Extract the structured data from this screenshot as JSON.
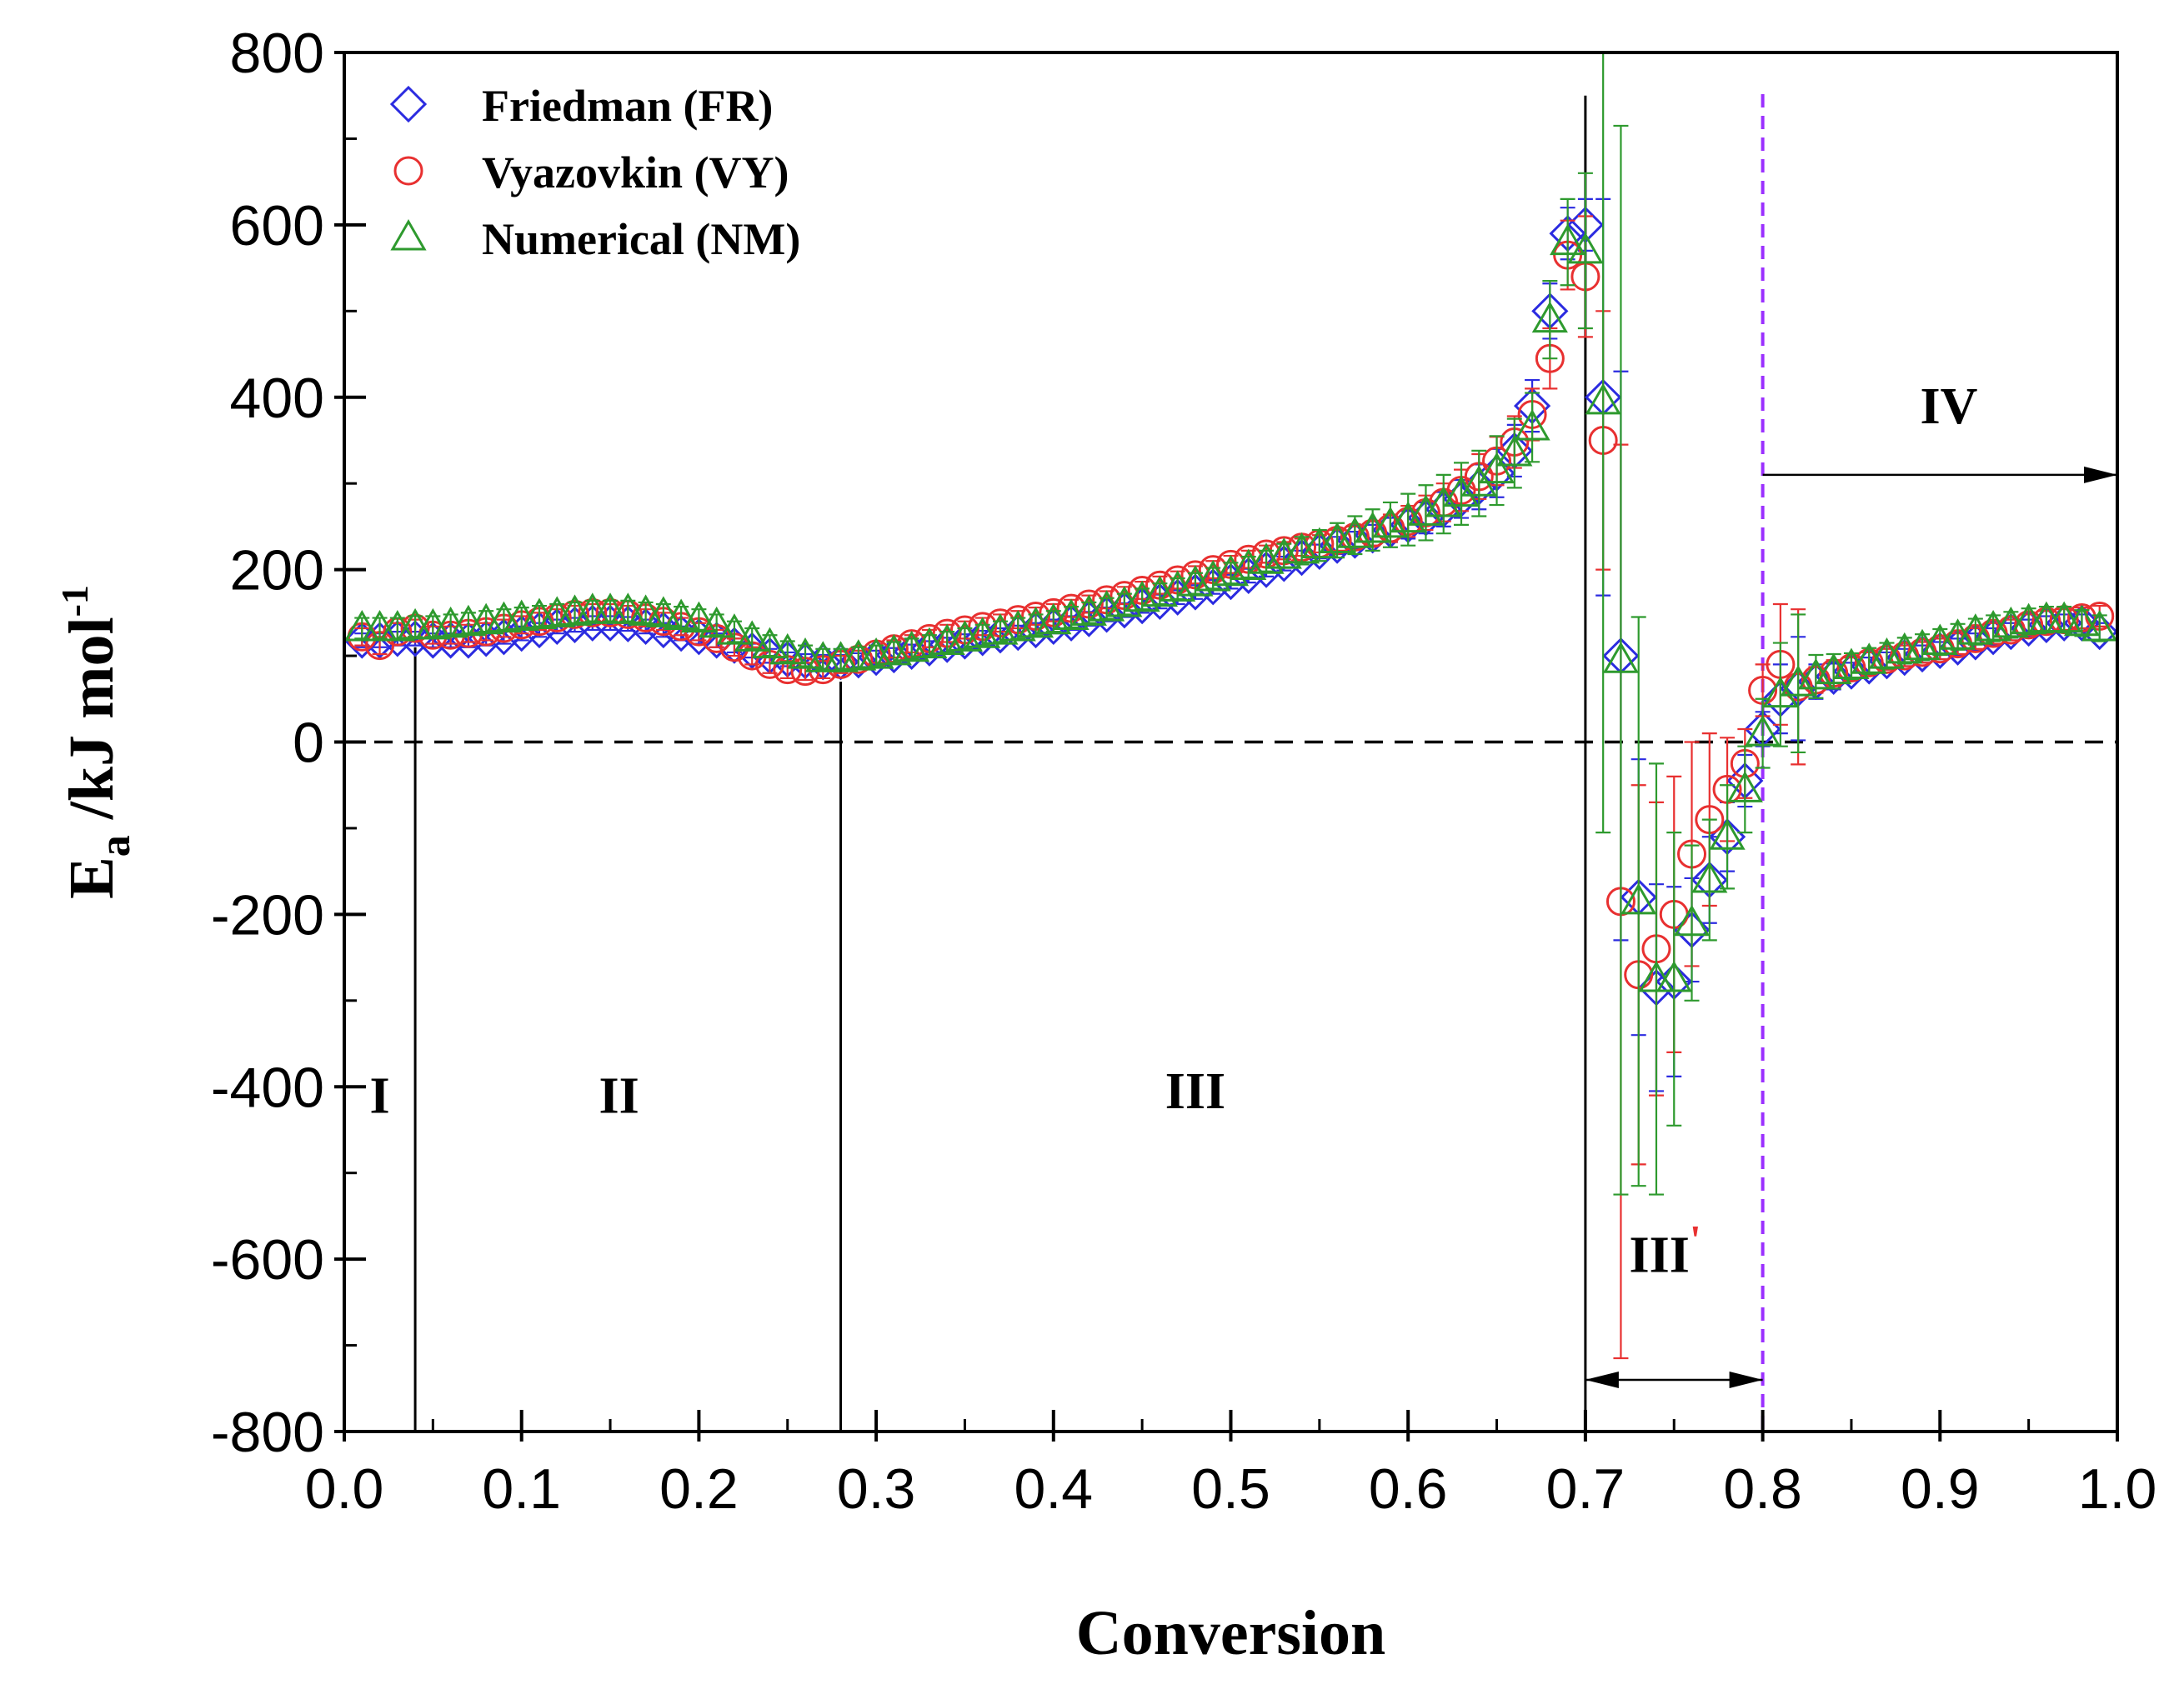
{
  "chart_data": {
    "type": "scatter",
    "xlabel": "Conversion",
    "ylabel_main": "E",
    "ylabel_sub": "a",
    "ylabel_rest": " /kJ mol",
    "ylabel_sup": "-1",
    "xlim": [
      0.0,
      1.0
    ],
    "ylim": [
      -800,
      800
    ],
    "x_ticks": [
      0.0,
      0.1,
      0.2,
      0.3,
      0.4,
      0.5,
      0.6,
      0.7,
      0.8,
      0.9,
      1.0
    ],
    "x_tick_labels": [
      "0.0",
      "0.1",
      "0.2",
      "0.3",
      "0.4",
      "0.5",
      "0.6",
      "0.7",
      "0.8",
      "0.9",
      "1.0"
    ],
    "y_ticks": [
      800,
      600,
      400,
      200,
      0,
      -200,
      -400,
      -600,
      -800
    ],
    "y_tick_labels": [
      "800",
      "600",
      "400",
      "200",
      "0",
      "-200",
      "-400",
      "-600",
      "-800"
    ],
    "legend": [
      {
        "name": "Friedman (FR)",
        "marker": "diamond",
        "color": "#2b2be0"
      },
      {
        "name": "Vyazovkin (VY)",
        "marker": "circle",
        "color": "#e83030"
      },
      {
        "name": "Numerical (NM)",
        "marker": "triangle",
        "color": "#2e9a2e"
      }
    ],
    "zero_line": 0,
    "region_boundaries": [
      0.04,
      0.28,
      0.7
    ],
    "dashed_boundary": {
      "x": 0.8,
      "color": "#9b30ff"
    },
    "regions": [
      {
        "label": "I",
        "x": 0.02,
        "y": -430
      },
      {
        "label": "II",
        "x": 0.155,
        "y": -430
      },
      {
        "label": "III",
        "x": 0.48,
        "y": -425
      },
      {
        "label": "III",
        "prime": "'",
        "x": 0.745,
        "y": -615
      },
      {
        "label": "IV",
        "x": 0.905,
        "y": 370
      }
    ],
    "arrows": [
      {
        "from_x": 0.7,
        "to_x": 0.8,
        "y": -740,
        "style": "double"
      },
      {
        "from_x": 0.8,
        "to_x": 1.0,
        "y": 310,
        "style": "single"
      }
    ],
    "series": [
      {
        "name": "Friedman (FR)",
        "color": "#2b2be0",
        "marker": "diamond",
        "x": [
          0.01,
          0.02,
          0.03,
          0.04,
          0.05,
          0.06,
          0.07,
          0.08,
          0.09,
          0.1,
          0.11,
          0.12,
          0.13,
          0.14,
          0.15,
          0.16,
          0.17,
          0.18,
          0.19,
          0.2,
          0.21,
          0.22,
          0.23,
          0.24,
          0.25,
          0.26,
          0.27,
          0.28,
          0.29,
          0.3,
          0.31,
          0.32,
          0.33,
          0.34,
          0.35,
          0.36,
          0.37,
          0.38,
          0.39,
          0.4,
          0.41,
          0.42,
          0.43,
          0.44,
          0.45,
          0.46,
          0.47,
          0.48,
          0.49,
          0.5,
          0.51,
          0.52,
          0.53,
          0.54,
          0.55,
          0.56,
          0.57,
          0.58,
          0.59,
          0.6,
          0.61,
          0.62,
          0.63,
          0.64,
          0.65,
          0.66,
          0.67,
          0.68,
          0.69,
          0.7,
          0.71,
          0.72,
          0.73,
          0.74,
          0.75,
          0.76,
          0.77,
          0.78,
          0.79,
          0.8,
          0.81,
          0.82,
          0.83,
          0.84,
          0.85,
          0.86,
          0.87,
          0.88,
          0.89,
          0.9,
          0.91,
          0.92,
          0.93,
          0.94,
          0.95,
          0.96,
          0.97,
          0.98,
          0.99
        ],
        "y": [
          118,
          118,
          120,
          120,
          118,
          118,
          118,
          120,
          122,
          126,
          130,
          134,
          136,
          138,
          138,
          137,
          134,
          130,
          126,
          122,
          118,
          112,
          106,
          100,
          96,
          94,
          93,
          93,
          95,
          98,
          101,
          105,
          109,
          113,
          117,
          121,
          124,
          127,
          130,
          134,
          138,
          143,
          148,
          153,
          158,
          163,
          168,
          174,
          180,
          186,
          193,
          200,
          207,
          214,
          221,
          228,
          234,
          240,
          246,
          252,
          260,
          270,
          282,
          296,
          312,
          338,
          390,
          500,
          590,
          600,
          400,
          100,
          -180,
          -285,
          -278,
          -218,
          -160,
          -110,
          -45,
          15,
          50,
          62,
          70,
          76,
          82,
          88,
          94,
          98,
          102,
          106,
          110,
          116,
          122,
          128,
          132,
          136,
          138,
          138,
          128
        ],
        "err": [
          8,
          8,
          8,
          8,
          8,
          8,
          8,
          8,
          8,
          8,
          8,
          8,
          8,
          8,
          8,
          8,
          8,
          8,
          8,
          8,
          8,
          8,
          8,
          8,
          8,
          8,
          8,
          8,
          8,
          8,
          8,
          8,
          8,
          8,
          8,
          8,
          8,
          8,
          8,
          8,
          8,
          8,
          8,
          8,
          8,
          8,
          8,
          8,
          8,
          8,
          8,
          8,
          8,
          8,
          8,
          10,
          10,
          12,
          14,
          16,
          18,
          20,
          22,
          26,
          28,
          30,
          30,
          32,
          30,
          30,
          230,
          330,
          160,
          120,
          110,
          60,
          50,
          40,
          30,
          20,
          40,
          60,
          20,
          15,
          10,
          10,
          10,
          10,
          10,
          10,
          10,
          10,
          10,
          10,
          10,
          10,
          10,
          10,
          10
        ]
      },
      {
        "name": "Vyazovkin (VY)",
        "color": "#e83030",
        "marker": "circle",
        "x": [
          0.01,
          0.02,
          0.03,
          0.04,
          0.05,
          0.06,
          0.07,
          0.08,
          0.09,
          0.1,
          0.11,
          0.12,
          0.13,
          0.14,
          0.15,
          0.16,
          0.17,
          0.18,
          0.19,
          0.2,
          0.21,
          0.22,
          0.23,
          0.24,
          0.25,
          0.26,
          0.27,
          0.28,
          0.29,
          0.3,
          0.31,
          0.32,
          0.33,
          0.34,
          0.35,
          0.36,
          0.37,
          0.38,
          0.39,
          0.4,
          0.41,
          0.42,
          0.43,
          0.44,
          0.45,
          0.46,
          0.47,
          0.48,
          0.49,
          0.5,
          0.51,
          0.52,
          0.53,
          0.54,
          0.55,
          0.56,
          0.57,
          0.58,
          0.59,
          0.6,
          0.61,
          0.62,
          0.63,
          0.64,
          0.65,
          0.66,
          0.67,
          0.68,
          0.69,
          0.7,
          0.71,
          0.72,
          0.73,
          0.74,
          0.75,
          0.76,
          0.77,
          0.78,
          0.79,
          0.8,
          0.81,
          0.82,
          0.83,
          0.84,
          0.85,
          0.86,
          0.87,
          0.88,
          0.89,
          0.9,
          0.91,
          0.92,
          0.93,
          0.94,
          0.95,
          0.96,
          0.97,
          0.98,
          0.99
        ],
        "y": [
          122,
          112,
          128,
          132,
          124,
          124,
          126,
          128,
          132,
          136,
          140,
          144,
          148,
          150,
          150,
          148,
          144,
          140,
          134,
          128,
          120,
          110,
          100,
          90,
          84,
          82,
          84,
          90,
          96,
          102,
          108,
          114,
          120,
          126,
          130,
          134,
          138,
          142,
          146,
          150,
          155,
          160,
          165,
          170,
          176,
          182,
          188,
          194,
          200,
          206,
          212,
          218,
          222,
          226,
          230,
          234,
          238,
          242,
          248,
          256,
          266,
          278,
          292,
          308,
          326,
          348,
          380,
          445,
          565,
          540,
          350,
          -185,
          -270,
          -240,
          -200,
          -130,
          -90,
          -55,
          -25,
          60,
          90,
          64,
          72,
          80,
          86,
          92,
          96,
          100,
          104,
          108,
          114,
          120,
          126,
          130,
          136,
          140,
          142,
          144,
          146
        ],
        "err": [
          10,
          10,
          10,
          10,
          10,
          10,
          10,
          10,
          10,
          10,
          10,
          10,
          10,
          10,
          10,
          10,
          10,
          10,
          10,
          10,
          10,
          10,
          10,
          10,
          10,
          10,
          10,
          10,
          10,
          10,
          10,
          10,
          10,
          10,
          10,
          10,
          10,
          10,
          10,
          10,
          10,
          10,
          10,
          10,
          10,
          10,
          10,
          10,
          10,
          10,
          10,
          10,
          10,
          10,
          10,
          12,
          12,
          14,
          16,
          18,
          20,
          22,
          24,
          26,
          28,
          30,
          30,
          35,
          40,
          70,
          150,
          530,
          220,
          170,
          160,
          130,
          100,
          60,
          40,
          30,
          70,
          90,
          15,
          15,
          12,
          12,
          12,
          12,
          12,
          12,
          12,
          12,
          12,
          12,
          12,
          12,
          12,
          12,
          12
        ]
      },
      {
        "name": "Numerical (NM)",
        "color": "#2e9a2e",
        "marker": "triangle",
        "x": [
          0.01,
          0.02,
          0.03,
          0.04,
          0.05,
          0.06,
          0.07,
          0.08,
          0.09,
          0.1,
          0.11,
          0.12,
          0.13,
          0.14,
          0.15,
          0.16,
          0.17,
          0.18,
          0.19,
          0.2,
          0.21,
          0.22,
          0.23,
          0.24,
          0.25,
          0.26,
          0.27,
          0.28,
          0.29,
          0.3,
          0.31,
          0.32,
          0.33,
          0.34,
          0.35,
          0.36,
          0.37,
          0.38,
          0.39,
          0.4,
          0.41,
          0.42,
          0.43,
          0.44,
          0.45,
          0.46,
          0.47,
          0.48,
          0.49,
          0.5,
          0.51,
          0.52,
          0.53,
          0.54,
          0.55,
          0.56,
          0.57,
          0.58,
          0.59,
          0.6,
          0.61,
          0.62,
          0.63,
          0.64,
          0.65,
          0.66,
          0.67,
          0.68,
          0.69,
          0.7,
          0.71,
          0.72,
          0.73,
          0.74,
          0.75,
          0.76,
          0.77,
          0.78,
          0.79,
          0.8,
          0.81,
          0.82,
          0.83,
          0.84,
          0.85,
          0.86,
          0.87,
          0.88,
          0.89,
          0.9,
          0.91,
          0.92,
          0.93,
          0.94,
          0.95,
          0.96,
          0.97,
          0.98,
          0.99
        ],
        "y": [
          132,
          132,
          132,
          134,
          134,
          136,
          138,
          140,
          142,
          144,
          146,
          148,
          150,
          152,
          152,
          152,
          150,
          148,
          145,
          142,
          136,
          128,
          120,
          112,
          105,
          100,
          96,
          96,
          98,
          100,
          104,
          108,
          112,
          116,
          120,
          124,
          128,
          132,
          136,
          140,
          145,
          150,
          155,
          160,
          166,
          172,
          178,
          184,
          190,
          196,
          203,
          210,
          216,
          222,
          228,
          234,
          240,
          246,
          252,
          258,
          266,
          276,
          288,
          300,
          315,
          335,
          365,
          490,
          580,
          570,
          395,
          95,
          -185,
          -275,
          -275,
          -210,
          -160,
          -110,
          -55,
          10,
          55,
          68,
          76,
          82,
          88,
          94,
          100,
          106,
          110,
          116,
          122,
          128,
          132,
          136,
          140,
          142,
          142,
          138,
          132
        ],
        "err": [
          12,
          12,
          12,
          12,
          12,
          12,
          12,
          12,
          12,
          12,
          12,
          12,
          12,
          12,
          12,
          12,
          12,
          12,
          12,
          12,
          12,
          12,
          12,
          12,
          12,
          12,
          12,
          12,
          12,
          12,
          12,
          12,
          12,
          12,
          12,
          12,
          12,
          12,
          12,
          12,
          12,
          12,
          12,
          12,
          12,
          12,
          12,
          12,
          12,
          12,
          12,
          12,
          14,
          16,
          18,
          20,
          22,
          24,
          26,
          30,
          32,
          34,
          36,
          38,
          40,
          40,
          40,
          45,
          50,
          90,
          500,
          620,
          330,
          250,
          170,
          90,
          70,
          60,
          50,
          40,
          60,
          80,
          25,
          20,
          15,
          15,
          15,
          15,
          15,
          15,
          15,
          15,
          15,
          15,
          15,
          15,
          15,
          15,
          15
        ]
      }
    ]
  }
}
